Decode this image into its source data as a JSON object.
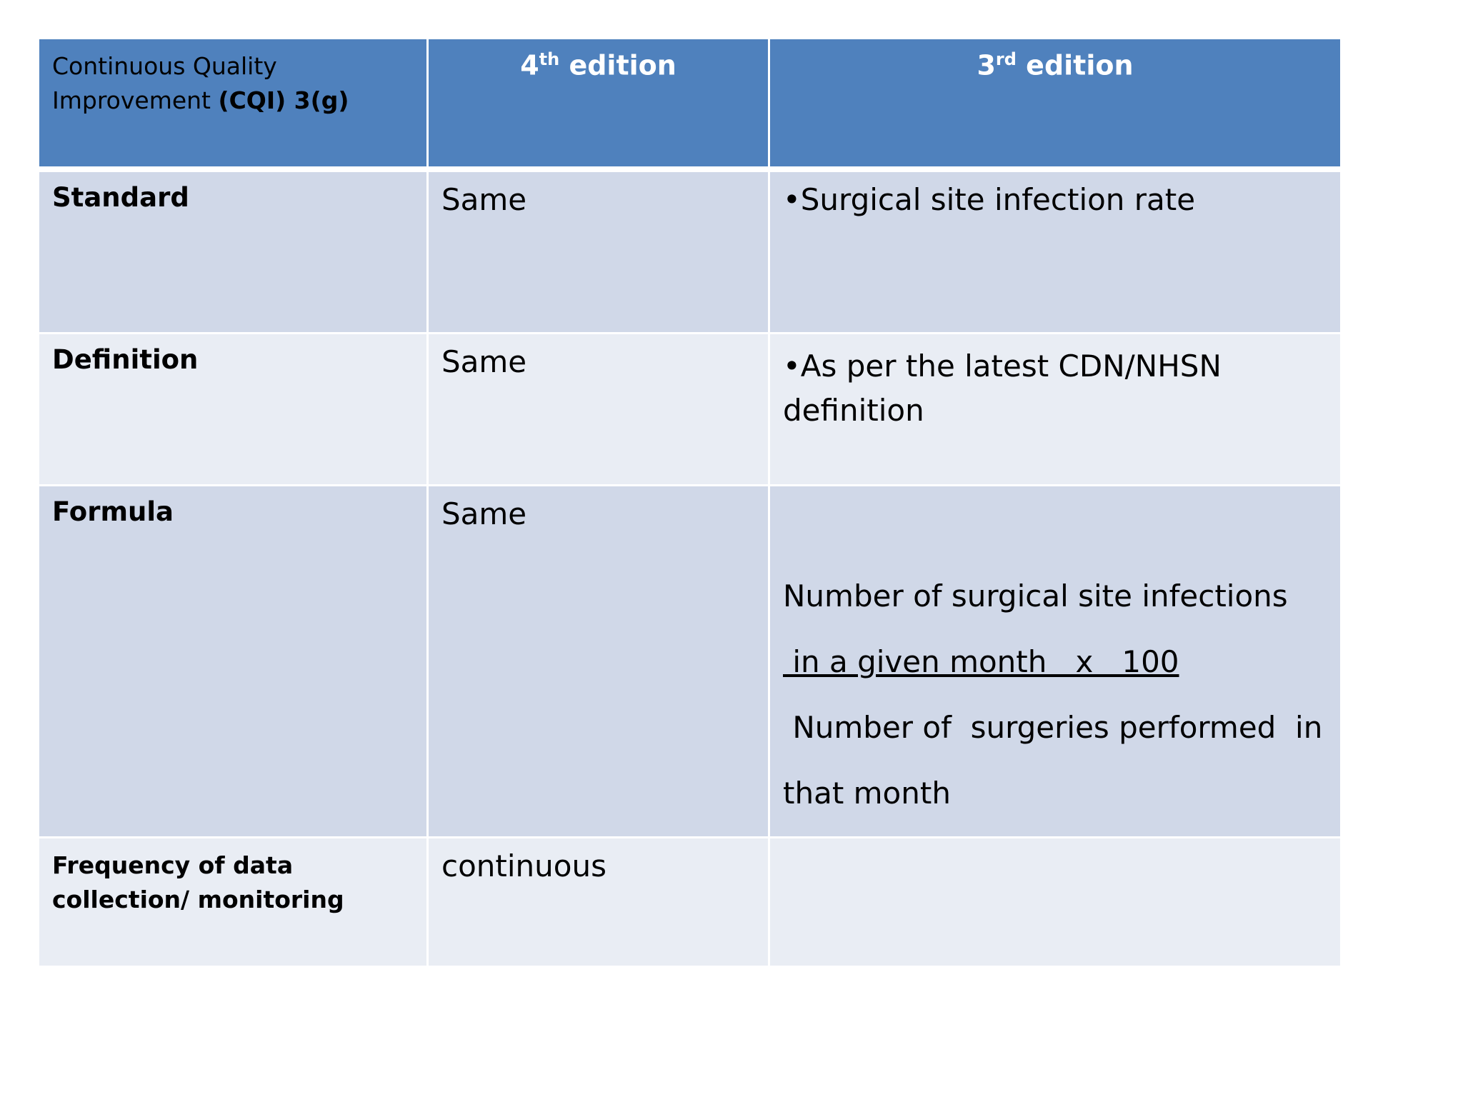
{
  "header": {
    "col1_line1": "Continuous Quality",
    "col1_line2_normal": "Improvement ",
    "col1_line2_bold": "(CQI) 3(g)",
    "col2_num": "4",
    "col2_sup": "th",
    "col2_rest": " edition",
    "col3_num": "3",
    "col3_sup": "rd",
    "col3_rest": " edition"
  },
  "rows": [
    {
      "label": "Standard",
      "fourth": "Same",
      "third": "•Surgical site infection rate"
    },
    {
      "label": "Definition",
      "fourth": "Same",
      "third": "•As per the latest CDN/NHSN definition"
    },
    {
      "label": "Formula",
      "fourth": "Same",
      "formula_line1": "Number of surgical site infections",
      "formula_line2": " in a given month   x   100",
      "formula_line3": " Number of  surgeries performed  in",
      "formula_line4": "that month"
    },
    {
      "label": "Frequency  of data collection/ monitoring",
      "fourth": "continuous",
      "third": ""
    }
  ]
}
